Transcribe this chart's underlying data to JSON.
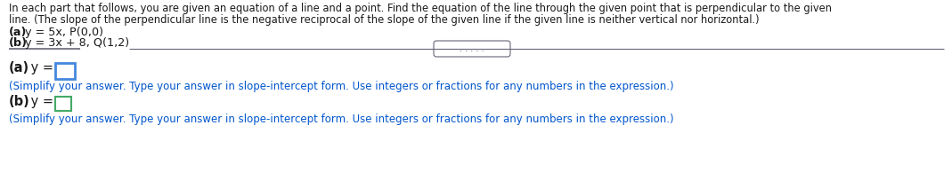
{
  "line1": "In each part that follows, you are given an equation of a line and a point. Find the equation of the line through the given point that is perpendicular to the given",
  "line2": "line. (The slope of the perpendicular line is the negative reciprocal of the slope of the given line if the given line is neither vertical nor horizontal.)",
  "part_a_bold": "(a)",
  "part_a_rest": "y = 5x, P(0,0)",
  "part_b_bold": "(b)",
  "part_b_rest": "y = 3x + 8, Q(1,2)",
  "answer_a_bold": "(a)",
  "answer_a_rest": " y = ",
  "answer_b_bold": "(b)",
  "answer_b_rest": " y = ",
  "simplify_note": "(Simplify your answer. Type your answer in slope-intercept form. Use integers or fractions for any numbers in the expression.)",
  "dots": ". . . . .",
  "text_color_black": "#1a1a1a",
  "text_color_blue": "#0055cc",
  "bg_color": "#ffffff",
  "box_color_a": "#4488dd",
  "box_color_b": "#44aa66",
  "line_color": "#666677",
  "font_size_header": 8.3,
  "font_size_parts": 9.2,
  "font_size_answer": 10.5,
  "font_size_note": 8.5,
  "font_size_dots": 7.0
}
